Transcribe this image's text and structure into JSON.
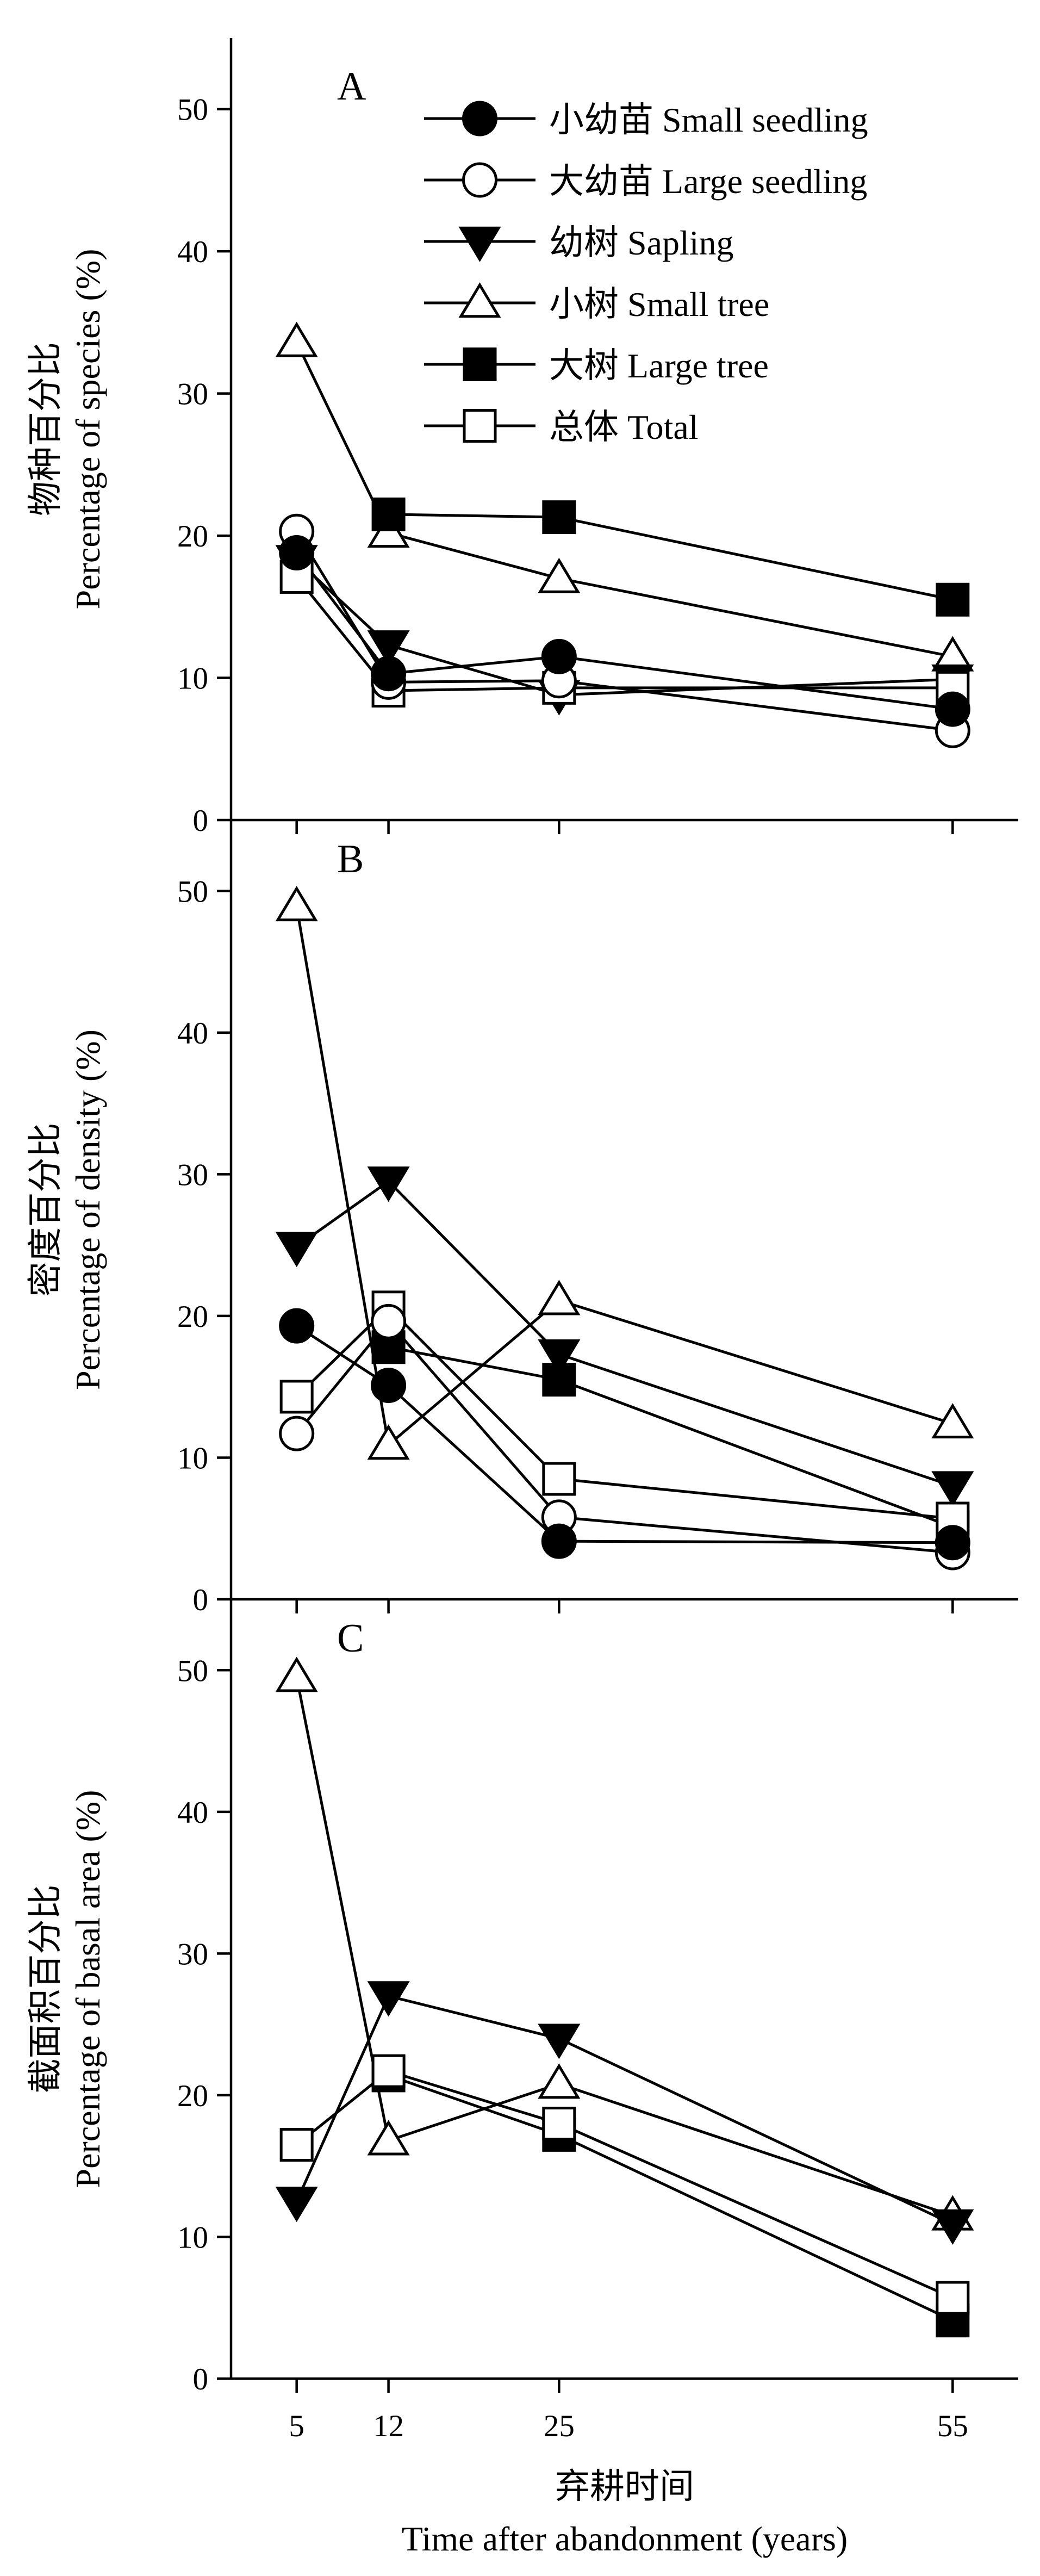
{
  "chart_data": [
    {
      "type": "line",
      "panel_label": "A",
      "ylabel_zh": "物种百分比",
      "ylabel_en": "Percentage of species (%)",
      "x": [
        5,
        12,
        25,
        55
      ],
      "xlim": [
        0,
        60
      ],
      "ylim": [
        0,
        55
      ],
      "yticks": [
        0,
        10,
        20,
        30,
        40,
        50
      ],
      "legend_position": "top-right",
      "series": [
        {
          "key": "small_seedling",
          "name_zh": "小幼苗",
          "name_en": "Small seedling",
          "marker": "circle",
          "filled": true,
          "values": [
            18.8,
            10.3,
            11.5,
            7.8
          ]
        },
        {
          "key": "large_seedling",
          "name_zh": "大幼苗",
          "name_en": "Large seedling",
          "marker": "circle",
          "filled": false,
          "values": [
            20.3,
            9.7,
            9.8,
            6.3
          ]
        },
        {
          "key": "sapling",
          "name_zh": "幼树",
          "name_en": "Sapling",
          "marker": "triangle-down",
          "filled": true,
          "values": [
            18.3,
            12.3,
            8.8,
            9.9
          ]
        },
        {
          "key": "small_tree",
          "name_zh": "小树",
          "name_en": "Small tree",
          "marker": "triangle-up",
          "filled": false,
          "values": [
            33.6,
            20.2,
            17.0,
            11.5
          ]
        },
        {
          "key": "large_tree",
          "name_zh": "大树",
          "name_en": "Large tree",
          "marker": "square",
          "filled": true,
          "values": [
            null,
            21.5,
            21.3,
            15.5
          ]
        },
        {
          "key": "total",
          "name_zh": "总体",
          "name_en": "Total",
          "marker": "square",
          "filled": false,
          "values": [
            17.1,
            9.1,
            9.3,
            9.3
          ]
        }
      ]
    },
    {
      "type": "line",
      "panel_label": "B",
      "ylabel_zh": "密度百分比",
      "ylabel_en": "Percentage of density (%)",
      "x": [
        5,
        12,
        25,
        55
      ],
      "xlim": [
        0,
        60
      ],
      "ylim": [
        0,
        55
      ],
      "yticks": [
        0,
        10,
        20,
        30,
        40,
        50
      ],
      "series": [
        {
          "key": "small_seedling",
          "marker": "circle",
          "filled": true,
          "values": [
            19.3,
            15.1,
            4.1,
            4.0
          ]
        },
        {
          "key": "large_seedling",
          "marker": "circle",
          "filled": false,
          "values": [
            11.7,
            19.6,
            5.8,
            3.3
          ]
        },
        {
          "key": "sapling",
          "marker": "triangle-down",
          "filled": true,
          "values": [
            24.9,
            29.5,
            17.3,
            8.0
          ]
        },
        {
          "key": "small_tree",
          "marker": "triangle-up",
          "filled": false,
          "values": [
            48.9,
            10.9,
            21.1,
            12.4
          ]
        },
        {
          "key": "large_tree",
          "marker": "square",
          "filled": true,
          "values": [
            null,
            17.8,
            15.5,
            5.1
          ]
        },
        {
          "key": "total",
          "marker": "square",
          "filled": false,
          "values": [
            14.3,
            20.6,
            8.5,
            5.7
          ]
        }
      ]
    },
    {
      "type": "line",
      "panel_label": "C",
      "ylabel_zh": "截面积百分比",
      "ylabel_en": "Percentage of basal area (%)",
      "x": [
        5,
        12,
        25,
        55
      ],
      "xlim": [
        0,
        60
      ],
      "ylim": [
        0,
        55
      ],
      "yticks": [
        0,
        10,
        20,
        30,
        40,
        50
      ],
      "xticks": [
        5,
        12,
        25,
        55
      ],
      "xlabel_zh": "弃耕时间",
      "xlabel_en": "Time after abandonment (years)",
      "series": [
        {
          "key": "sapling",
          "marker": "triangle-down",
          "filled": true,
          "values": [
            12.5,
            27.0,
            24.0,
            10.9
          ]
        },
        {
          "key": "small_tree",
          "marker": "triangle-up",
          "filled": false,
          "values": [
            49.5,
            16.8,
            20.8,
            11.5
          ]
        },
        {
          "key": "large_tree",
          "marker": "square",
          "filled": true,
          "values": [
            null,
            21.4,
            17.2,
            4.1
          ]
        },
        {
          "key": "total",
          "marker": "square",
          "filled": false,
          "values": [
            16.5,
            21.7,
            18.0,
            5.7
          ]
        }
      ]
    }
  ]
}
